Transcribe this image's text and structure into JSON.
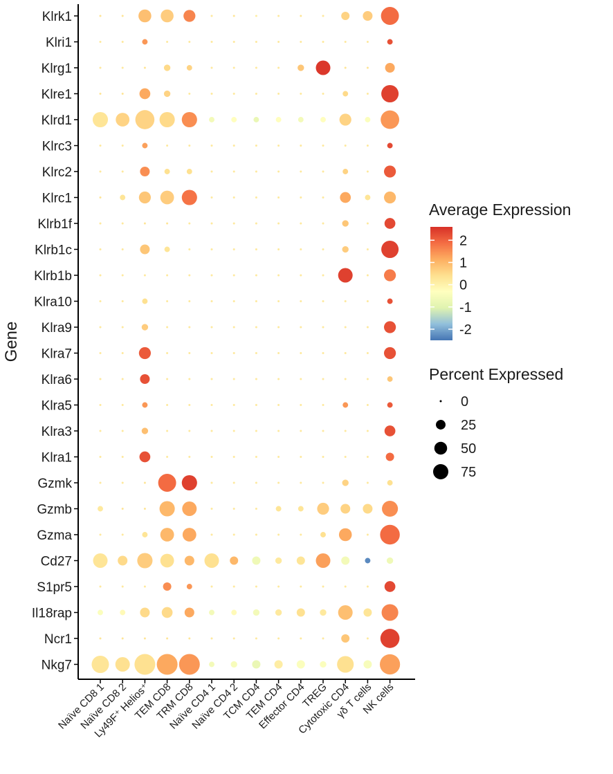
{
  "chart_data": {
    "type": "dotplot",
    "ylabel": "Gene",
    "genes": [
      "Klrk1",
      "Klri1",
      "Klrg1",
      "Klre1",
      "Klrd1",
      "Klrc3",
      "Klrc2",
      "Klrc1",
      "Klrb1f",
      "Klrb1c",
      "Klrb1b",
      "Klra10",
      "Klra9",
      "Klra7",
      "Klra6",
      "Klra5",
      "Klra3",
      "Klra1",
      "Gzmk",
      "Gzmb",
      "Gzma",
      "Cd27",
      "S1pr5",
      "Il18rap",
      "Ncr1",
      "Nkg7"
    ],
    "cell_types": [
      "Naïve CD8 1",
      "Naïve CD8 2",
      "Ly49F⁺ Helios⁺",
      "TEM CD8",
      "TRM CD8",
      "Naïve CD4 1",
      "Naïve CD4 2",
      "TCM CD4",
      "TEM CD4",
      "Effector CD4",
      "TREG",
      "Cytotoxic CD4",
      "γδ T cells",
      "NK cells"
    ],
    "color_legend": {
      "title": "Average Expression",
      "range": [
        -2.5,
        2.6
      ],
      "ticks": [
        2,
        1,
        0,
        -1,
        -2
      ],
      "colors": [
        "#4575b4",
        "#91bfdb",
        "#e0f3b0",
        "#ffffbf",
        "#fee090",
        "#fdae61",
        "#f46d43",
        "#d73027"
      ]
    },
    "size_legend": {
      "title": "Percent Expressed",
      "values": [
        0,
        25,
        50,
        75
      ]
    },
    "points": [
      [
        [
          0,
          0.3
        ],
        [
          0,
          0.3
        ],
        [
          30,
          0.9
        ],
        [
          30,
          0.7
        ],
        [
          25,
          1.6
        ],
        [
          0,
          0.2
        ],
        [
          0,
          0.3
        ],
        [
          0,
          0.1
        ],
        [
          0,
          0.2
        ],
        [
          0,
          0.3
        ],
        [
          0,
          0.2
        ],
        [
          10,
          0.6
        ],
        [
          15,
          0.7
        ],
        [
          65,
          1.9
        ]
      ],
      [
        [
          0,
          0.2
        ],
        [
          0,
          0.2
        ],
        [
          3,
          1.4
        ],
        [
          0,
          0.2
        ],
        [
          0,
          0.2
        ],
        [
          0,
          0.2
        ],
        [
          0,
          0.2
        ],
        [
          0,
          0.2
        ],
        [
          0,
          0.2
        ],
        [
          0,
          0.2
        ],
        [
          0,
          0.2
        ],
        [
          0,
          0.2
        ],
        [
          0,
          0.2
        ],
        [
          3,
          2.2
        ]
      ],
      [
        [
          0,
          0.2
        ],
        [
          0,
          0.2
        ],
        [
          0,
          0.3
        ],
        [
          5,
          0.5
        ],
        [
          3,
          0.6
        ],
        [
          0,
          0.2
        ],
        [
          0,
          0.2
        ],
        [
          0,
          0.2
        ],
        [
          0,
          0.2
        ],
        [
          5,
          0.8
        ],
        [
          40,
          2.5
        ],
        [
          0,
          0.3
        ],
        [
          0,
          0.3
        ],
        [
          15,
          1.2
        ]
      ],
      [
        [
          0,
          0.3
        ],
        [
          0,
          0.3
        ],
        [
          20,
          1.2
        ],
        [
          5,
          0.6
        ],
        [
          0,
          0.2
        ],
        [
          0,
          0.2
        ],
        [
          0,
          0.2
        ],
        [
          0,
          0.2
        ],
        [
          0,
          0.2
        ],
        [
          0,
          0.2
        ],
        [
          0,
          0.2
        ],
        [
          3,
          0.5
        ],
        [
          0,
          0.2
        ],
        [
          60,
          2.4
        ]
      ],
      [
        [
          45,
          0.3
        ],
        [
          35,
          0.6
        ],
        [
          75,
          0.6
        ],
        [
          45,
          0.5
        ],
        [
          45,
          1.5
        ],
        [
          3,
          -0.6
        ],
        [
          3,
          -0.3
        ],
        [
          3,
          -0.8
        ],
        [
          3,
          -0.3
        ],
        [
          3,
          -0.6
        ],
        [
          3,
          -0.3
        ],
        [
          25,
          0.6
        ],
        [
          3,
          -0.4
        ],
        [
          70,
          1.4
        ]
      ],
      [
        [
          0,
          0.2
        ],
        [
          0,
          0.2
        ],
        [
          3,
          1.3
        ],
        [
          0,
          0.2
        ],
        [
          0,
          0.2
        ],
        [
          0,
          0.2
        ],
        [
          0,
          0.2
        ],
        [
          0,
          0.2
        ],
        [
          0,
          0.2
        ],
        [
          0,
          0.2
        ],
        [
          0,
          0.2
        ],
        [
          0,
          0.2
        ],
        [
          0,
          0.2
        ],
        [
          3,
          2.3
        ]
      ],
      [
        [
          0,
          0.2
        ],
        [
          0,
          0.2
        ],
        [
          15,
          1.5
        ],
        [
          3,
          0.4
        ],
        [
          3,
          0.4
        ],
        [
          0,
          0.2
        ],
        [
          0,
          0.2
        ],
        [
          0,
          0.2
        ],
        [
          0,
          0.2
        ],
        [
          0,
          0.2
        ],
        [
          0,
          0.2
        ],
        [
          3,
          0.6
        ],
        [
          0,
          0.2
        ],
        [
          25,
          2.1
        ]
      ],
      [
        [
          0,
          0.3
        ],
        [
          3,
          0.3
        ],
        [
          25,
          0.8
        ],
        [
          35,
          0.7
        ],
        [
          45,
          1.8
        ],
        [
          0,
          0.2
        ],
        [
          0,
          0.2
        ],
        [
          0,
          0.2
        ],
        [
          0,
          0.2
        ],
        [
          0,
          0.2
        ],
        [
          0,
          0.2
        ],
        [
          20,
          1.2
        ],
        [
          3,
          0.3
        ],
        [
          25,
          1.0
        ]
      ],
      [
        [
          0,
          0.2
        ],
        [
          0,
          0.2
        ],
        [
          0,
          0.3
        ],
        [
          0,
          0.3
        ],
        [
          0,
          0.2
        ],
        [
          0,
          0.2
        ],
        [
          0,
          0.2
        ],
        [
          0,
          0.2
        ],
        [
          0,
          0.2
        ],
        [
          0,
          0.2
        ],
        [
          0,
          0.2
        ],
        [
          5,
          0.8
        ],
        [
          0,
          0.2
        ],
        [
          20,
          2.3
        ]
      ],
      [
        [
          0,
          0.2
        ],
        [
          0,
          0.2
        ],
        [
          15,
          0.8
        ],
        [
          3,
          0.3
        ],
        [
          0,
          0.2
        ],
        [
          0,
          0.2
        ],
        [
          0,
          0.2
        ],
        [
          0,
          0.2
        ],
        [
          0,
          0.2
        ],
        [
          0,
          0.2
        ],
        [
          0,
          0.2
        ],
        [
          5,
          0.7
        ],
        [
          0,
          0.2
        ],
        [
          60,
          2.4
        ]
      ],
      [
        [
          0,
          0.2
        ],
        [
          0,
          0.2
        ],
        [
          0,
          0.2
        ],
        [
          0,
          0.2
        ],
        [
          0,
          0.2
        ],
        [
          0,
          0.2
        ],
        [
          0,
          0.2
        ],
        [
          0,
          0.2
        ],
        [
          0,
          0.2
        ],
        [
          0,
          0.2
        ],
        [
          0,
          0.2
        ],
        [
          40,
          2.4
        ],
        [
          0,
          0.2
        ],
        [
          25,
          1.7
        ]
      ],
      [
        [
          0,
          0.2
        ],
        [
          0,
          0.2
        ],
        [
          3,
          0.4
        ],
        [
          0,
          0.2
        ],
        [
          0,
          0.2
        ],
        [
          0,
          0.2
        ],
        [
          0,
          0.2
        ],
        [
          0,
          0.2
        ],
        [
          0,
          0.2
        ],
        [
          0,
          0.2
        ],
        [
          0,
          0.2
        ],
        [
          0,
          0.2
        ],
        [
          0,
          0.2
        ],
        [
          3,
          2.2
        ]
      ],
      [
        [
          0,
          0.2
        ],
        [
          0,
          0.2
        ],
        [
          5,
          0.7
        ],
        [
          0,
          0.2
        ],
        [
          0,
          0.2
        ],
        [
          0,
          0.2
        ],
        [
          0,
          0.2
        ],
        [
          0,
          0.2
        ],
        [
          0,
          0.2
        ],
        [
          0,
          0.2
        ],
        [
          0,
          0.2
        ],
        [
          0,
          0.2
        ],
        [
          0,
          0.2
        ],
        [
          25,
          2.2
        ]
      ],
      [
        [
          0,
          0.2
        ],
        [
          0,
          0.2
        ],
        [
          25,
          2.1
        ],
        [
          0,
          0.2
        ],
        [
          0,
          0.2
        ],
        [
          0,
          0.2
        ],
        [
          0,
          0.2
        ],
        [
          0,
          0.2
        ],
        [
          0,
          0.2
        ],
        [
          0,
          0.2
        ],
        [
          0,
          0.2
        ],
        [
          0,
          0.2
        ],
        [
          0,
          0.2
        ],
        [
          25,
          2.2
        ]
      ],
      [
        [
          0,
          0.2
        ],
        [
          0,
          0.2
        ],
        [
          15,
          2.2
        ],
        [
          0,
          0.2
        ],
        [
          0,
          0.2
        ],
        [
          0,
          0.2
        ],
        [
          0,
          0.2
        ],
        [
          0,
          0.2
        ],
        [
          0,
          0.2
        ],
        [
          0,
          0.2
        ],
        [
          0,
          0.2
        ],
        [
          0,
          0.2
        ],
        [
          0,
          0.2
        ],
        [
          3,
          0.8
        ]
      ],
      [
        [
          0,
          0.2
        ],
        [
          0,
          0.2
        ],
        [
          3,
          1.4
        ],
        [
          0,
          0.2
        ],
        [
          0,
          0.2
        ],
        [
          0,
          0.2
        ],
        [
          0,
          0.2
        ],
        [
          0,
          0.2
        ],
        [
          0,
          0.2
        ],
        [
          0,
          0.2
        ],
        [
          0,
          0.2
        ],
        [
          3,
          1.4
        ],
        [
          0,
          0.2
        ],
        [
          3,
          2.1
        ]
      ],
      [
        [
          0,
          0.2
        ],
        [
          0,
          0.2
        ],
        [
          5,
          0.9
        ],
        [
          0,
          0.2
        ],
        [
          0,
          0.2
        ],
        [
          0,
          0.2
        ],
        [
          0,
          0.2
        ],
        [
          0,
          0.2
        ],
        [
          0,
          0.2
        ],
        [
          0,
          0.2
        ],
        [
          0,
          0.2
        ],
        [
          0,
          0.2
        ],
        [
          0,
          0.2
        ],
        [
          20,
          2.2
        ]
      ],
      [
        [
          0,
          0.2
        ],
        [
          0,
          0.2
        ],
        [
          20,
          2.2
        ],
        [
          0,
          0.2
        ],
        [
          0,
          0.2
        ],
        [
          0,
          0.2
        ],
        [
          0,
          0.2
        ],
        [
          0,
          0.2
        ],
        [
          0,
          0.2
        ],
        [
          0,
          0.2
        ],
        [
          0,
          0.2
        ],
        [
          0,
          0.2
        ],
        [
          0,
          0.2
        ],
        [
          10,
          1.9
        ]
      ],
      [
        [
          0,
          0.2
        ],
        [
          0,
          0.2
        ],
        [
          0,
          0.3
        ],
        [
          65,
          1.9
        ],
        [
          45,
          2.4
        ],
        [
          0,
          0.2
        ],
        [
          0,
          0.2
        ],
        [
          0,
          0.2
        ],
        [
          0,
          0.2
        ],
        [
          0,
          0.2
        ],
        [
          0,
          0.2
        ],
        [
          5,
          0.6
        ],
        [
          0,
          0.2
        ],
        [
          3,
          0.4
        ]
      ],
      [
        [
          3,
          0.2
        ],
        [
          0,
          0.3
        ],
        [
          0,
          0.3
        ],
        [
          45,
          1.0
        ],
        [
          40,
          1.2
        ],
        [
          0,
          0.2
        ],
        [
          0,
          0.2
        ],
        [
          0,
          0.2
        ],
        [
          3,
          0.3
        ],
        [
          3,
          0.3
        ],
        [
          25,
          0.7
        ],
        [
          15,
          0.6
        ],
        [
          15,
          0.5
        ],
        [
          50,
          1.5
        ]
      ],
      [
        [
          0,
          0.2
        ],
        [
          0,
          0.2
        ],
        [
          3,
          0.3
        ],
        [
          35,
          1.0
        ],
        [
          35,
          1.2
        ],
        [
          0,
          0.2
        ],
        [
          0,
          0.2
        ],
        [
          0,
          0.2
        ],
        [
          0,
          0.2
        ],
        [
          0,
          0.2
        ],
        [
          3,
          0.4
        ],
        [
          30,
          1.2
        ],
        [
          0,
          0.2
        ],
        [
          80,
          1.9
        ]
      ],
      [
        [
          40,
          0.3
        ],
        [
          15,
          0.5
        ],
        [
          45,
          0.7
        ],
        [
          35,
          0.4
        ],
        [
          15,
          1.0
        ],
        [
          40,
          0.4
        ],
        [
          10,
          1.0
        ],
        [
          10,
          -0.7
        ],
        [
          5,
          0.2
        ],
        [
          10,
          0.3
        ],
        [
          40,
          1.3
        ],
        [
          10,
          -0.6
        ],
        [
          3,
          -2.3
        ],
        [
          5,
          -0.7
        ]
      ],
      [
        [
          0,
          0.2
        ],
        [
          0,
          0.2
        ],
        [
          0,
          0.2
        ],
        [
          10,
          1.5
        ],
        [
          3,
          1.4
        ],
        [
          0,
          0.2
        ],
        [
          0,
          0.2
        ],
        [
          0,
          0.2
        ],
        [
          0,
          0.2
        ],
        [
          0,
          0.2
        ],
        [
          0,
          0.2
        ],
        [
          0,
          0.2
        ],
        [
          0,
          0.2
        ],
        [
          20,
          2.3
        ]
      ],
      [
        [
          3,
          -0.4
        ],
        [
          3,
          -0.2
        ],
        [
          15,
          0.5
        ],
        [
          20,
          0.5
        ],
        [
          15,
          1.2
        ],
        [
          3,
          -0.6
        ],
        [
          3,
          -0.2
        ],
        [
          5,
          -0.6
        ],
        [
          5,
          0.2
        ],
        [
          10,
          0.4
        ],
        [
          5,
          0.2
        ],
        [
          40,
          0.9
        ],
        [
          10,
          0.3
        ],
        [
          55,
          1.6
        ]
      ],
      [
        [
          0,
          0.3
        ],
        [
          0,
          0.3
        ],
        [
          0,
          0.3
        ],
        [
          0,
          0.3
        ],
        [
          0,
          0.3
        ],
        [
          0,
          0.2
        ],
        [
          0,
          0.2
        ],
        [
          0,
          0.2
        ],
        [
          0,
          0.2
        ],
        [
          0,
          0.2
        ],
        [
          0,
          0.2
        ],
        [
          10,
          0.8
        ],
        [
          0,
          0.2
        ],
        [
          75,
          2.4
        ]
      ],
      [
        [
          60,
          0.3
        ],
        [
          40,
          0.4
        ],
        [
          90,
          0.4
        ],
        [
          90,
          1.2
        ],
        [
          90,
          1.4
        ],
        [
          3,
          -0.6
        ],
        [
          5,
          -0.5
        ],
        [
          10,
          -0.8
        ],
        [
          10,
          0.1
        ],
        [
          10,
          -0.4
        ],
        [
          5,
          -0.4
        ],
        [
          55,
          0.4
        ],
        [
          10,
          -0.5
        ],
        [
          85,
          1.3
        ]
      ]
    ]
  }
}
